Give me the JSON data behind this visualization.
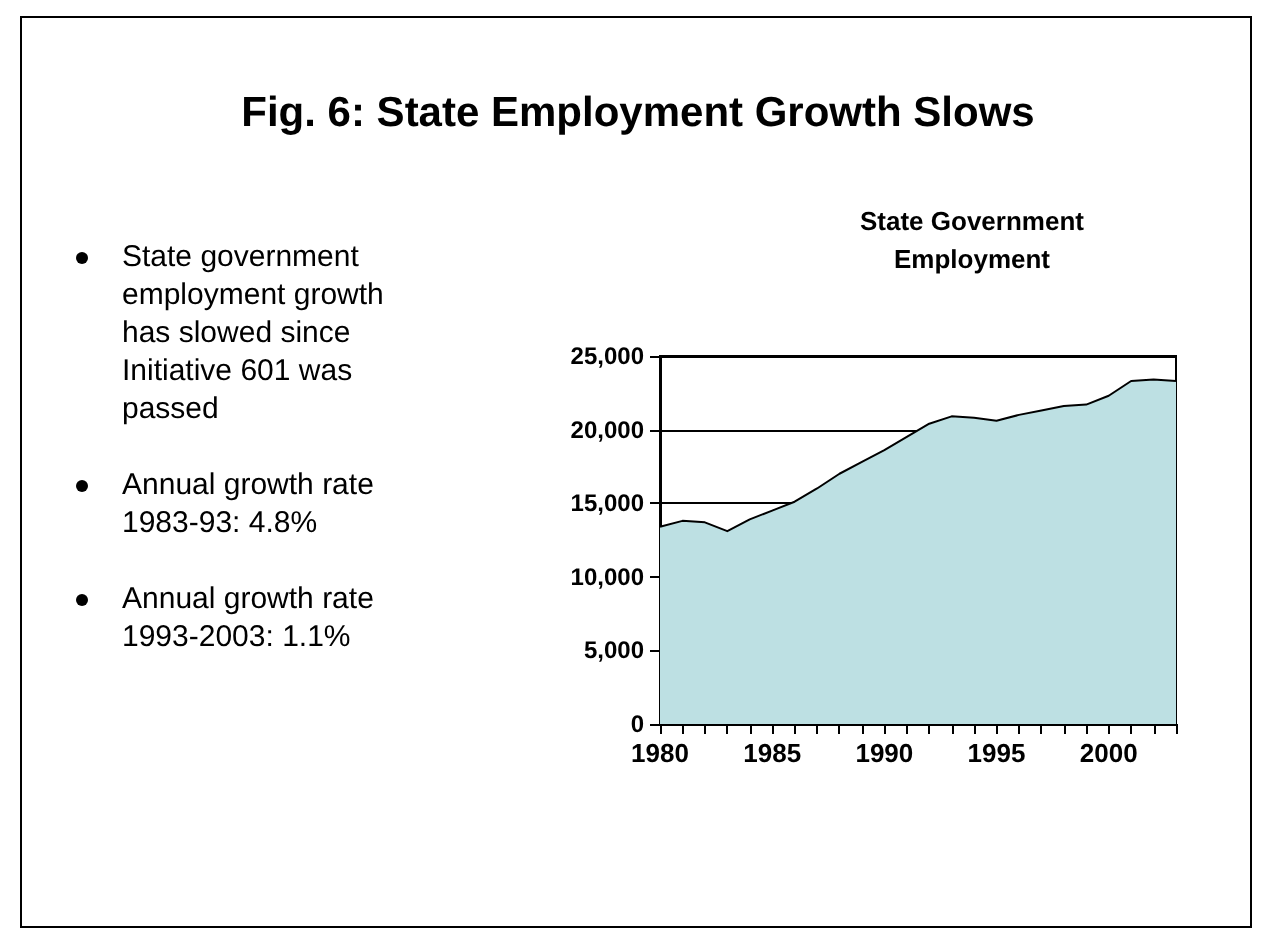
{
  "chart_data": {
    "type": "area",
    "title": "Fig. 6: State Employment Growth Slows",
    "subtitle": "State Government Employment",
    "annotations": [
      "State government employment growth has slowed since Initiative 601 was passed",
      "Annual growth rate 1983-93: 4.8%",
      "Annual growth rate 1993-2003: 1.1%"
    ],
    "x": [
      1980,
      1981,
      1982,
      1983,
      1984,
      1985,
      1986,
      1987,
      1988,
      1989,
      1990,
      1991,
      1992,
      1993,
      1994,
      1995,
      1996,
      1997,
      1998,
      1999,
      2000,
      2001,
      2002,
      2003
    ],
    "series": [
      {
        "color": "#bde0e3",
        "values": [
          13400,
          13800,
          13700,
          13100,
          13900,
          14500,
          15100,
          16000,
          17000,
          17800,
          18600,
          19500,
          20400,
          20900,
          20800,
          20600,
          21000,
          21300,
          21600,
          21700,
          22300,
          23300,
          23400,
          23300
        ]
      }
    ],
    "xlim": [
      1980,
      2003
    ],
    "xticks": [
      1980,
      {
        "value": 1981,
        "label": null
      },
      {
        "value": 1982,
        "label": null
      },
      {
        "value": 1983,
        "label": null
      },
      {
        "value": 1984,
        "label": null
      },
      1985,
      {
        "value": 1986,
        "label": null
      },
      {
        "value": 1987,
        "label": null
      },
      {
        "value": 1988,
        "label": null
      },
      {
        "value": 1989,
        "label": null
      },
      1990,
      {
        "value": 1991,
        "label": null
      },
      {
        "value": 1992,
        "label": null
      },
      {
        "value": 1993,
        "label": null
      },
      {
        "value": 1994,
        "label": null
      },
      1995,
      {
        "value": 1996,
        "label": null
      },
      {
        "value": 1997,
        "label": null
      },
      {
        "value": 1998,
        "label": null
      },
      {
        "value": 1999,
        "label": null
      },
      2000,
      {
        "value": 2001,
        "label": null
      },
      {
        "value": 2002,
        "label": null
      },
      {
        "value": 2003,
        "label": null
      }
    ],
    "ylim": [
      0,
      25000
    ],
    "yticks": [
      0,
      {
        "value": 5000,
        "label": "5,000"
      },
      {
        "value": 10000,
        "label": "10,000"
      },
      {
        "value": 15000,
        "label": "15,000"
      },
      {
        "value": 20000,
        "label": "20,000"
      },
      {
        "value": 25000,
        "label": "25,000"
      }
    ],
    "grid": "y",
    "marker": "none",
    "line_style": "solid"
  }
}
